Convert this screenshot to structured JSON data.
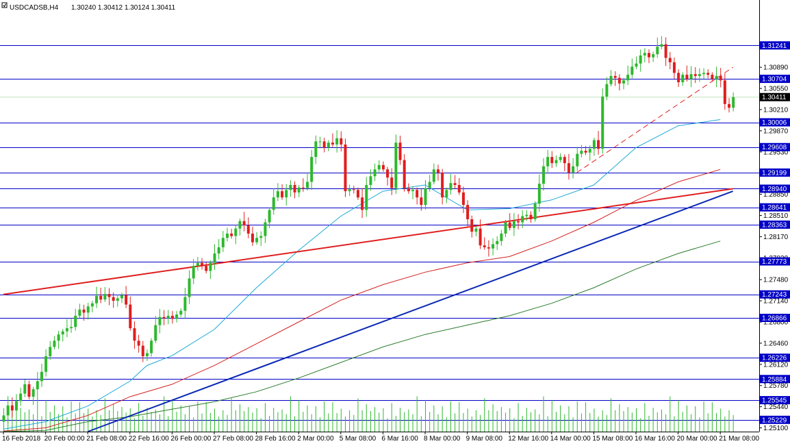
{
  "header": {
    "symbol": "USDCADSB,H4",
    "ohlc": "1.30240 1.30412 1.30124 1.30411"
  },
  "colors": {
    "background": "#ffffff",
    "bull": "#2db82d",
    "bear": "#e01e1e",
    "sr_level": "#0000c8",
    "trend_red": "#e01e1e",
    "trend_blue": "#0a28b4",
    "ma_fast": "#1ca8d6",
    "ma_mid": "#d42020",
    "ma_slow": "#2a7a2a",
    "volume": "#2db82d",
    "current_price": "#000000",
    "bid_line": "#bfe6bf"
  },
  "chart_data": {
    "type": "candlestick",
    "title": "USDCADSB,H4",
    "ylim": [
      1.2504,
      1.3175
    ],
    "price_ticks": [
      "1.30890",
      "1.30550",
      "1.30210",
      "1.29870",
      "1.29530",
      "1.28850",
      "1.28510",
      "1.28170",
      "1.27830",
      "1.27480",
      "1.27140",
      "1.26800",
      "1.26460",
      "1.26120",
      "1.25780",
      "1.25440",
      "1.25100"
    ],
    "sr_levels": [
      "1.31241",
      "1.30704",
      "1.30006",
      "1.29608",
      "1.29199",
      "1.28940",
      "1.28641",
      "1.28363",
      "1.27773",
      "1.27243",
      "1.26866",
      "1.26226",
      "1.25884",
      "1.25545",
      "1.25229"
    ],
    "current_price": "1.30411",
    "x_labels": [
      "16 Feb 2018",
      "20 Feb 00:00",
      "21 Feb 08:00",
      "22 Feb 16:00",
      "26 Feb 00:00",
      "27 Feb 08:00",
      "28 Feb 16:00",
      "2 Mar 00:00",
      "5 Mar 08:00",
      "6 Mar 16:00",
      "8 Mar 00:00",
      "9 Mar 08:00",
      "12 Mar 16:00",
      "14 Mar 00:00",
      "15 Mar 08:00",
      "16 Mar 16:00",
      "20 Mar 00:00",
      "21 Mar 08:00"
    ],
    "x_label_index": [
      0,
      10,
      20,
      30,
      40,
      50,
      60,
      70,
      80,
      90,
      100,
      110,
      120,
      130,
      140,
      150,
      160,
      170
    ],
    "candles_close": [
      1.253,
      1.2546,
      1.2538,
      1.2553,
      1.2565,
      1.258,
      1.256,
      1.2572,
      1.2585,
      1.26,
      1.2625,
      1.264,
      1.265,
      1.266,
      1.2665,
      1.267,
      1.2672,
      1.269,
      1.27,
      1.2695,
      1.2705,
      1.271,
      1.2722,
      1.2716,
      1.2725,
      1.272,
      1.2714,
      1.2718,
      1.2723,
      1.2708,
      1.267,
      1.265,
      1.2642,
      1.2625,
      1.263,
      1.265,
      1.2675,
      1.2688,
      1.2686,
      1.269,
      1.2685,
      1.2692,
      1.2698,
      1.272,
      1.275,
      1.277,
      1.2775,
      1.277,
      1.2762,
      1.2775,
      1.279,
      1.28,
      1.2815,
      1.2822,
      1.2818,
      1.283,
      1.2842,
      1.2835,
      1.2822,
      1.2808,
      1.2815,
      1.2818,
      1.284,
      1.286,
      1.288,
      1.289,
      1.288,
      1.2892,
      1.29,
      1.2888,
      1.2896,
      1.2895,
      1.2905,
      1.2945,
      1.297,
      1.297,
      1.296,
      1.2968,
      1.2965,
      1.2975,
      1.2965,
      1.289,
      1.2893,
      1.2892,
      1.288,
      1.286,
      1.29,
      1.2914,
      1.2925,
      1.2932,
      1.2925,
      1.2912,
      1.2895,
      1.2968,
      1.294,
      1.2895,
      1.289,
      1.2892,
      1.288,
      1.2868,
      1.2895,
      1.2905,
      1.2925,
      1.292,
      1.288,
      1.2892,
      1.2903,
      1.29,
      1.2888,
      1.2868,
      1.2845,
      1.2825,
      1.283,
      1.2803,
      1.28,
      1.2798,
      1.2805,
      1.281,
      1.2822,
      1.284,
      1.2831,
      1.2842,
      1.284,
      1.285,
      1.2852,
      1.2845,
      1.287,
      1.2902,
      1.293,
      1.2945,
      1.2935,
      1.294,
      1.2945,
      1.2935,
      1.292,
      1.293,
      1.295,
      1.2955,
      1.2952,
      1.2958,
      1.2972,
      1.2958,
      1.3042,
      1.3062,
      1.3075,
      1.3072,
      1.3063,
      1.3068,
      1.3077,
      1.309,
      1.3095,
      1.3108,
      1.3112,
      1.3105,
      1.311,
      1.3122,
      1.3126,
      1.3104,
      1.3097,
      1.308,
      1.3065,
      1.3077,
      1.307,
      1.3078,
      1.3075,
      1.3078,
      1.308,
      1.3077,
      1.307,
      1.3075,
      1.3068,
      1.303,
      1.3024,
      1.3041
    ],
    "moving_averages": [
      {
        "points": [
          [
            0,
            1.2508
          ],
          [
            10,
            1.252
          ],
          [
            20,
            1.2545
          ],
          [
            30,
            1.2585
          ],
          [
            34,
            1.261
          ],
          [
            40,
            1.2626
          ],
          [
            50,
            1.2668
          ],
          [
            60,
            1.2735
          ],
          [
            70,
            1.2795
          ],
          [
            80,
            1.285
          ],
          [
            90,
            1.289
          ],
          [
            100,
            1.29
          ],
          [
            110,
            1.286
          ],
          [
            120,
            1.2862
          ],
          [
            130,
            1.2876
          ],
          [
            140,
            1.29
          ],
          [
            150,
            1.296
          ],
          [
            160,
            1.2995
          ],
          [
            170,
            1.3005
          ]
        ]
      },
      {
        "points": [
          [
            0,
            1.2505
          ],
          [
            10,
            1.251
          ],
          [
            20,
            1.253
          ],
          [
            30,
            1.256
          ],
          [
            40,
            1.258
          ],
          [
            50,
            1.261
          ],
          [
            60,
            1.2645
          ],
          [
            70,
            1.268
          ],
          [
            80,
            1.2715
          ],
          [
            90,
            1.274
          ],
          [
            100,
            1.276
          ],
          [
            110,
            1.2775
          ],
          [
            120,
            1.2785
          ],
          [
            130,
            1.281
          ],
          [
            140,
            1.284
          ],
          [
            150,
            1.2875
          ],
          [
            160,
            1.2905
          ],
          [
            170,
            1.2925
          ]
        ]
      },
      {
        "points": [
          [
            0,
            1.2504
          ],
          [
            10,
            1.2506
          ],
          [
            20,
            1.252
          ],
          [
            30,
            1.2528
          ],
          [
            40,
            1.254
          ],
          [
            50,
            1.2552
          ],
          [
            60,
            1.2568
          ],
          [
            70,
            1.259
          ],
          [
            80,
            1.2615
          ],
          [
            90,
            1.264
          ],
          [
            100,
            1.266
          ],
          [
            110,
            1.2675
          ],
          [
            120,
            1.269
          ],
          [
            130,
            1.271
          ],
          [
            140,
            1.2735
          ],
          [
            150,
            1.2765
          ],
          [
            160,
            1.279
          ],
          [
            170,
            1.281
          ]
        ]
      }
    ],
    "trendlines": [
      {
        "style": "solid",
        "color_key": "trend_red",
        "from": [
          0,
          1.27243
        ],
        "to": [
          173,
          1.2894
        ]
      },
      {
        "style": "solid",
        "color_key": "trend_blue",
        "from": [
          20,
          1.2504
        ],
        "to": [
          173,
          1.289
        ]
      },
      {
        "style": "dashed",
        "color_key": "trend_red",
        "from": [
          136,
          1.292
        ],
        "to": [
          173,
          1.3089
        ]
      }
    ],
    "volume_pattern": [
      0.45,
      0.3,
      0.55,
      0.25,
      0.4,
      0.35,
      0.6,
      0.2,
      0.5,
      0.38,
      0.65,
      0.28,
      0.42,
      0.33,
      0.58,
      0.22,
      0.48,
      0.36,
      0.7,
      0.3,
      0.44,
      0.26,
      0.62,
      0.34,
      0.52,
      0.4,
      0.75,
      0.24,
      0.46,
      0.32
    ]
  }
}
